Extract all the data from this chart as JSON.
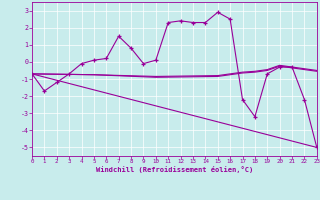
{
  "xlabel": "Windchill (Refroidissement éolien,°C)",
  "background_color": "#c8ecec",
  "line_color": "#990099",
  "xlim": [
    0,
    23
  ],
  "ylim": [
    -5.5,
    3.5
  ],
  "yticks": [
    -5,
    -4,
    -3,
    -2,
    -1,
    0,
    1,
    2,
    3
  ],
  "xticks": [
    0,
    1,
    2,
    3,
    4,
    5,
    6,
    7,
    8,
    9,
    10,
    11,
    12,
    13,
    14,
    15,
    16,
    17,
    18,
    19,
    20,
    21,
    22,
    23
  ],
  "series1_x": [
    0,
    1,
    2,
    3,
    4,
    5,
    6,
    7,
    8,
    9,
    10,
    11,
    12,
    13,
    14,
    15,
    16,
    17,
    18,
    19,
    20,
    21,
    22,
    23
  ],
  "series1_y": [
    -0.7,
    -1.7,
    -1.2,
    -0.7,
    -0.1,
    0.1,
    0.2,
    1.5,
    0.8,
    -0.1,
    0.1,
    2.3,
    2.4,
    2.3,
    2.3,
    2.9,
    2.5,
    -2.2,
    -3.2,
    -0.7,
    -0.3,
    -0.3,
    -2.2,
    -5.0
  ],
  "series2_x": [
    0,
    23
  ],
  "series2_y": [
    -0.7,
    -5.0
  ],
  "series3_x": [
    0,
    5,
    10,
    15,
    16,
    17,
    18,
    19,
    20,
    21,
    22,
    23
  ],
  "series3_y": [
    -0.7,
    -0.75,
    -0.85,
    -0.8,
    -0.7,
    -0.6,
    -0.55,
    -0.45,
    -0.2,
    -0.3,
    -0.4,
    -0.5
  ],
  "series4_x": [
    0,
    5,
    10,
    15,
    16,
    17,
    18,
    19,
    20,
    21,
    22,
    23
  ],
  "series4_y": [
    -0.7,
    -0.75,
    -0.9,
    -0.85,
    -0.75,
    -0.65,
    -0.6,
    -0.5,
    -0.25,
    -0.35,
    -0.45,
    -0.55
  ]
}
